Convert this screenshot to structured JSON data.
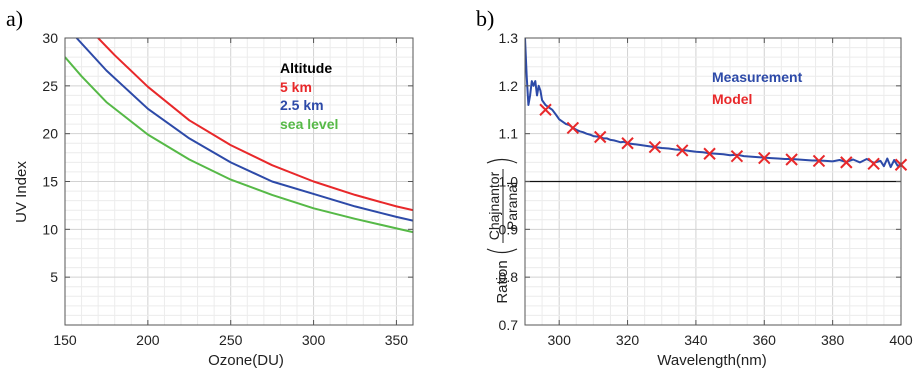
{
  "chart_data": [
    {
      "panel_label": "a)",
      "type": "line",
      "xlabel": "Ozone(DU)",
      "ylabel": "UV Index",
      "xlim": [
        150,
        360
      ],
      "ylim": [
        0,
        30
      ],
      "xticks": [
        150,
        200,
        250,
        300,
        350
      ],
      "yticks": [
        5,
        10,
        15,
        20,
        25,
        30
      ],
      "grid": true,
      "legend": {
        "title": "Altitude",
        "title_color": "#000000",
        "placement": "top-right",
        "entries": [
          {
            "label": "5 km",
            "color": "#e8282a"
          },
          {
            "label": "2.5 km",
            "color": "#2d4aa8"
          },
          {
            "label": "sea level",
            "color": "#56b947"
          }
        ]
      },
      "series": [
        {
          "name": "5 km",
          "color": "#e8282a",
          "x": [
            170,
            180,
            200,
            225,
            250,
            275,
            300,
            325,
            350,
            360
          ],
          "y": [
            30.0,
            28.2,
            24.9,
            21.4,
            18.8,
            16.7,
            15.0,
            13.6,
            12.4,
            12.0
          ]
        },
        {
          "name": "2.5 km",
          "color": "#2d4aa8",
          "x": [
            157,
            175,
            200,
            225,
            250,
            275,
            300,
            325,
            350,
            360
          ],
          "y": [
            30.0,
            26.6,
            22.6,
            19.5,
            17.0,
            15.0,
            13.7,
            12.4,
            11.3,
            10.9
          ]
        },
        {
          "name": "sea level",
          "color": "#56b947",
          "x": [
            150,
            160,
            175,
            200,
            225,
            250,
            275,
            300,
            325,
            350,
            360
          ],
          "y": [
            28.0,
            26.0,
            23.3,
            19.9,
            17.3,
            15.2,
            13.6,
            12.2,
            11.1,
            10.1,
            9.7
          ]
        }
      ]
    },
    {
      "panel_label": "b)",
      "type": "line",
      "xlabel": "Wavelength(nm)",
      "ylabel_prefix": "Ration",
      "ylabel_numerator": "Chajnantor",
      "ylabel_denominator": "Paranal",
      "xlim": [
        290,
        400
      ],
      "ylim": [
        0.7,
        1.3
      ],
      "xticks": [
        300,
        320,
        340,
        360,
        380,
        400
      ],
      "yticks": [
        0.7,
        0.8,
        0.9,
        1.0,
        1.1,
        1.2,
        1.3
      ],
      "grid": true,
      "reference_line": 1.0,
      "legend": {
        "placement": "top-right",
        "entries": [
          {
            "label": "Measurement",
            "color": "#2d4aa8"
          },
          {
            "label": "Model",
            "color": "#e8282a"
          }
        ]
      },
      "series": [
        {
          "name": "Measurement",
          "color": "#2d4aa8",
          "x": [
            290,
            290.5,
            291,
            291.5,
            292,
            292.5,
            293,
            293.5,
            294,
            294.5,
            295,
            296,
            297,
            298,
            299,
            300,
            301,
            302,
            303,
            304,
            305,
            306,
            307,
            308,
            309,
            310,
            311,
            312,
            313,
            314,
            315,
            316,
            317,
            318,
            319,
            320,
            322,
            324,
            326,
            328,
            330,
            332,
            334,
            336,
            338,
            340,
            342,
            344,
            346,
            348,
            350,
            352,
            354,
            356,
            358,
            360,
            362,
            364,
            366,
            368,
            370,
            372,
            374,
            376,
            378,
            380,
            382,
            384,
            386,
            388,
            390,
            392,
            394,
            395,
            396,
            397,
            398,
            399,
            400
          ],
          "y": [
            1.3,
            1.22,
            1.16,
            1.18,
            1.21,
            1.2,
            1.21,
            1.18,
            1.2,
            1.19,
            1.17,
            1.16,
            1.155,
            1.15,
            1.14,
            1.13,
            1.125,
            1.12,
            1.118,
            1.112,
            1.108,
            1.105,
            1.103,
            1.1,
            1.098,
            1.095,
            1.094,
            1.093,
            1.09,
            1.09,
            1.087,
            1.086,
            1.084,
            1.082,
            1.083,
            1.08,
            1.078,
            1.076,
            1.074,
            1.072,
            1.07,
            1.069,
            1.067,
            1.066,
            1.064,
            1.062,
            1.061,
            1.059,
            1.058,
            1.057,
            1.055,
            1.056,
            1.053,
            1.052,
            1.051,
            1.05,
            1.049,
            1.048,
            1.047,
            1.047,
            1.046,
            1.045,
            1.044,
            1.044,
            1.043,
            1.042,
            1.045,
            1.041,
            1.046,
            1.04,
            1.047,
            1.039,
            1.043,
            1.032,
            1.048,
            1.03,
            1.045,
            1.033,
            1.035
          ]
        },
        {
          "name": "Model",
          "color": "#e8282a",
          "marker": "x",
          "x": [
            296,
            304,
            312,
            320,
            328,
            336,
            344,
            352,
            360,
            368,
            376,
            384,
            392,
            400
          ],
          "y": [
            1.15,
            1.112,
            1.093,
            1.08,
            1.072,
            1.065,
            1.058,
            1.053,
            1.049,
            1.046,
            1.043,
            1.04,
            1.037,
            1.035
          ]
        }
      ]
    }
  ]
}
